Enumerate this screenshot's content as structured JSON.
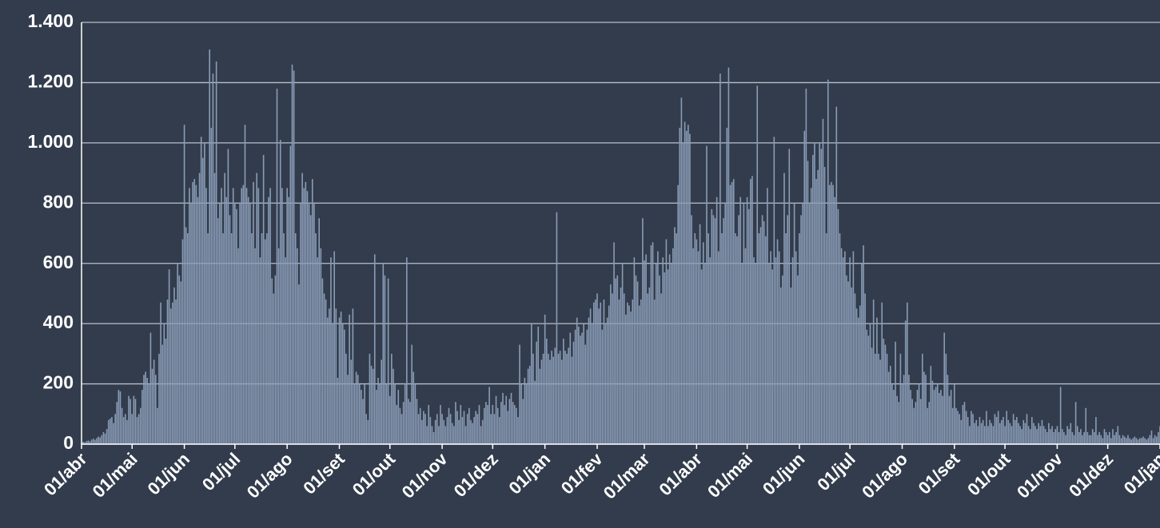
{
  "chart_data": {
    "type": "bar",
    "color": "#8a9cb6",
    "ylim": [
      0,
      1400
    ],
    "yticks": [
      0,
      200,
      400,
      600,
      800,
      {
        "value": 1000,
        "label": "1.000"
      },
      {
        "value": 1200,
        "label": "1.200"
      },
      {
        "value": 1400,
        "label": "1.400"
      }
    ],
    "grid": true,
    "categories": [
      "01/abr",
      null,
      null,
      null,
      null,
      null,
      null,
      null,
      null,
      null,
      null,
      null,
      null,
      null,
      null,
      null,
      null,
      null,
      null,
      null,
      null,
      null,
      null,
      null,
      null,
      null,
      null,
      null,
      null,
      null,
      "01/mai",
      null,
      null,
      null,
      null,
      null,
      null,
      null,
      null,
      null,
      null,
      null,
      null,
      null,
      null,
      null,
      null,
      null,
      null,
      null,
      null,
      null,
      null,
      null,
      null,
      null,
      null,
      null,
      null,
      null,
      null,
      "01/jun",
      null,
      null,
      null,
      null,
      null,
      null,
      null,
      null,
      null,
      null,
      null,
      null,
      null,
      null,
      null,
      null,
      null,
      null,
      null,
      null,
      null,
      null,
      null,
      null,
      null,
      null,
      null,
      null,
      null,
      "01/jul",
      null,
      null,
      null,
      null,
      null,
      null,
      null,
      null,
      null,
      null,
      null,
      null,
      null,
      null,
      null,
      null,
      null,
      null,
      null,
      null,
      null,
      null,
      null,
      null,
      null,
      null,
      null,
      null,
      null,
      null,
      "01/ago",
      null,
      null,
      null,
      null,
      null,
      null,
      null,
      null,
      null,
      null,
      null,
      null,
      null,
      null,
      null,
      null,
      null,
      null,
      null,
      null,
      null,
      null,
      null,
      null,
      null,
      null,
      null,
      null,
      null,
      null,
      "01/set",
      null,
      null,
      null,
      null,
      null,
      null,
      null,
      null,
      null,
      null,
      null,
      null,
      null,
      null,
      null,
      null,
      null,
      null,
      null,
      null,
      null,
      null,
      null,
      null,
      null,
      null,
      null,
      null,
      null,
      "01/out",
      null,
      null,
      null,
      null,
      null,
      null,
      null,
      null,
      null,
      null,
      null,
      null,
      null,
      null,
      null,
      null,
      null,
      null,
      null,
      null,
      null,
      null,
      null,
      null,
      null,
      null,
      null,
      null,
      null,
      null,
      "01/nov",
      null,
      null,
      null,
      null,
      null,
      null,
      null,
      null,
      null,
      null,
      null,
      null,
      null,
      null,
      null,
      null,
      null,
      null,
      null,
      null,
      null,
      null,
      null,
      null,
      null,
      null,
      null,
      null,
      null,
      "01/dez",
      null,
      null,
      null,
      null,
      null,
      null,
      null,
      null,
      null,
      null,
      null,
      null,
      null,
      null,
      null,
      null,
      null,
      null,
      null,
      null,
      null,
      null,
      null,
      null,
      null,
      null,
      null,
      null,
      null,
      null,
      "01/jan",
      null,
      null,
      null,
      null,
      null,
      null,
      null,
      null,
      null,
      null,
      null,
      null,
      null,
      null,
      null,
      null,
      null,
      null,
      null,
      null,
      null,
      null,
      null,
      null,
      null,
      null,
      null,
      null,
      null,
      null,
      "01/fev",
      null,
      null,
      null,
      null,
      null,
      null,
      null,
      null,
      null,
      null,
      null,
      null,
      null,
      null,
      null,
      null,
      null,
      null,
      null,
      null,
      null,
      null,
      null,
      null,
      null,
      null,
      null,
      "01/mar",
      null,
      null,
      null,
      null,
      null,
      null,
      null,
      null,
      null,
      null,
      null,
      null,
      null,
      null,
      null,
      null,
      null,
      null,
      null,
      null,
      null,
      null,
      null,
      null,
      null,
      null,
      null,
      null,
      null,
      null,
      "01/abr",
      null,
      null,
      null,
      null,
      null,
      null,
      null,
      null,
      null,
      null,
      null,
      null,
      null,
      null,
      null,
      null,
      null,
      null,
      null,
      null,
      null,
      null,
      null,
      null,
      null,
      null,
      null,
      null,
      null,
      "01/mai",
      null,
      null,
      null,
      null,
      null,
      null,
      null,
      null,
      null,
      null,
      null,
      null,
      null,
      null,
      null,
      null,
      null,
      null,
      null,
      null,
      null,
      null,
      null,
      null,
      null,
      null,
      null,
      null,
      null,
      null,
      "01/jun",
      null,
      null,
      null,
      null,
      null,
      null,
      null,
      null,
      null,
      null,
      null,
      null,
      null,
      null,
      null,
      null,
      null,
      null,
      null,
      null,
      null,
      null,
      null,
      null,
      null,
      null,
      null,
      null,
      null,
      "01/jul",
      null,
      null,
      null,
      null,
      null,
      null,
      null,
      null,
      null,
      null,
      null,
      null,
      null,
      null,
      null,
      null,
      null,
      null,
      null,
      null,
      null,
      null,
      null,
      null,
      null,
      null,
      null,
      null,
      null,
      null,
      "01/ago",
      null,
      null,
      null,
      null,
      null,
      null,
      null,
      null,
      null,
      null,
      null,
      null,
      null,
      null,
      null,
      null,
      null,
      null,
      null,
      null,
      null,
      null,
      null,
      null,
      null,
      null,
      null,
      null,
      null,
      null,
      "01/set",
      null,
      null,
      null,
      null,
      null,
      null,
      null,
      null,
      null,
      null,
      null,
      null,
      null,
      null,
      null,
      null,
      null,
      null,
      null,
      null,
      null,
      null,
      null,
      null,
      null,
      null,
      null,
      null,
      null,
      "01/out",
      null,
      null,
      null,
      null,
      null,
      null,
      null,
      null,
      null,
      null,
      null,
      null,
      null,
      null,
      null,
      null,
      null,
      null,
      null,
      null,
      null,
      null,
      null,
      null,
      null,
      null,
      null,
      null,
      null,
      null,
      "01/nov",
      null,
      null,
      null,
      null,
      null,
      null,
      null,
      null,
      null,
      null,
      null,
      null,
      null,
      null,
      null,
      null,
      null,
      null,
      null,
      null,
      null,
      null,
      null,
      null,
      null,
      null,
      null,
      null,
      null,
      "01/dez",
      null,
      null,
      null,
      null,
      null,
      null,
      null,
      null,
      null,
      null,
      null,
      null,
      null,
      null,
      null,
      null,
      null,
      null,
      null,
      null,
      null,
      null,
      null,
      null,
      null,
      null,
      null,
      null,
      null,
      null,
      "01/jan"
    ],
    "values": [
      5,
      8,
      6,
      10,
      12,
      9,
      15,
      18,
      14,
      20,
      25,
      22,
      30,
      40,
      35,
      50,
      80,
      85,
      90,
      70,
      100,
      140,
      180,
      175,
      120,
      90,
      100,
      80,
      160,
      150,
      100,
      160,
      150,
      90,
      100,
      120,
      180,
      230,
      240,
      220,
      200,
      370,
      250,
      280,
      230,
      120,
      300,
      470,
      330,
      400,
      350,
      480,
      580,
      450,
      470,
      520,
      480,
      600,
      560,
      540,
      680,
      1060,
      720,
      700,
      850,
      800,
      870,
      880,
      860,
      820,
      900,
      1020,
      950,
      1000,
      850,
      700,
      1310,
      1050,
      1230,
      900,
      1270,
      750,
      800,
      850,
      700,
      900,
      820,
      980,
      760,
      700,
      850,
      800,
      780,
      650,
      800,
      850,
      860,
      1060,
      850,
      820,
      800,
      700,
      870,
      650,
      900,
      850,
      620,
      700,
      960,
      680,
      700,
      820,
      850,
      550,
      500,
      560,
      1180,
      650,
      1010,
      850,
      700,
      620,
      850,
      820,
      990,
      1260,
      1240,
      700,
      650,
      530,
      800,
      900,
      850,
      870,
      840,
      800,
      760,
      880,
      800,
      700,
      620,
      750,
      650,
      550,
      500,
      480,
      420,
      450,
      620,
      400,
      640,
      450,
      220,
      420,
      440,
      400,
      380,
      300,
      230,
      430,
      280,
      450,
      200,
      240,
      230,
      200,
      180,
      150,
      200,
      100,
      80,
      300,
      260,
      250,
      630,
      180,
      220,
      200,
      280,
      600,
      560,
      200,
      550,
      160,
      300,
      250,
      200,
      130,
      180,
      120,
      100,
      140,
      200,
      620,
      150,
      140,
      330,
      240,
      200,
      150,
      100,
      120,
      80,
      110,
      100,
      60,
      130,
      90,
      60,
      40,
      80,
      100,
      60,
      130,
      100,
      80,
      60,
      90,
      120,
      100,
      70,
      60,
      140,
      110,
      80,
      130,
      90,
      110,
      60,
      100,
      120,
      80,
      70,
      90,
      110,
      100,
      130,
      60,
      80,
      120,
      140,
      130,
      190,
      100,
      130,
      100,
      160,
      120,
      90,
      140,
      170,
      130,
      160,
      110,
      150,
      170,
      140,
      130,
      120,
      90,
      330,
      200,
      150,
      220,
      200,
      250,
      260,
      400,
      300,
      210,
      340,
      390,
      250,
      280,
      300,
      430,
      350,
      300,
      280,
      310,
      290,
      320,
      770,
      300,
      310,
      280,
      350,
      310,
      300,
      320,
      370,
      290,
      340,
      380,
      420,
      390,
      360,
      370,
      400,
      330,
      380,
      420,
      450,
      400,
      470,
      480,
      500,
      450,
      470,
      380,
      480,
      400,
      420,
      460,
      530,
      500,
      670,
      550,
      560,
      480,
      520,
      600,
      500,
      430,
      470,
      460,
      440,
      480,
      620,
      560,
      540,
      460,
      480,
      750,
      610,
      630,
      500,
      520,
      660,
      670,
      480,
      600,
      640,
      560,
      500,
      620,
      570,
      680,
      580,
      630,
      600,
      650,
      720,
      700,
      860,
      1050,
      1150,
      1000,
      1070,
      1040,
      1060,
      1030,
      760,
      650,
      700,
      680,
      640,
      730,
      580,
      670,
      600,
      990,
      700,
      620,
      780,
      760,
      750,
      820,
      640,
      1230,
      700,
      750,
      800,
      1050,
      1250,
      860,
      870,
      880,
      700,
      690,
      760,
      820,
      600,
      800,
      650,
      820,
      780,
      880,
      890,
      620,
      600,
      1190,
      700,
      720,
      760,
      740,
      690,
      850,
      600,
      640,
      580,
      1020,
      620,
      680,
      640,
      520,
      560,
      900,
      700,
      760,
      980,
      520,
      620,
      800,
      640,
      560,
      700,
      760,
      800,
      1040,
      1180,
      940,
      800,
      850,
      960,
      1000,
      880,
      910,
      1000,
      980,
      1080,
      920,
      700,
      1210,
      860,
      870,
      860,
      820,
      1120,
      780,
      700,
      650,
      620,
      640,
      560,
      540,
      620,
      520,
      640,
      500,
      450,
      420,
      460,
      600,
      660,
      500,
      380,
      360,
      400,
      320,
      480,
      300,
      420,
      300,
      280,
      470,
      350,
      330,
      300,
      240,
      260,
      200,
      180,
      340,
      160,
      140,
      300,
      200,
      230,
      410,
      470,
      230,
      180,
      150,
      120,
      140,
      180,
      200,
      150,
      300,
      240,
      230,
      120,
      140,
      260,
      210,
      180,
      190,
      200,
      170,
      180,
      160,
      370,
      300,
      230,
      160,
      180,
      120,
      200,
      120,
      110,
      100,
      80,
      130,
      140,
      110,
      90,
      60,
      110,
      100,
      70,
      80,
      60,
      90,
      70,
      80,
      60,
      110,
      60,
      80,
      70,
      60,
      100,
      90,
      110,
      70,
      80,
      90,
      60,
      110,
      80,
      70,
      60,
      100,
      80,
      90,
      70,
      60,
      50,
      80,
      70,
      100,
      60,
      50,
      90,
      70,
      60,
      50,
      70,
      60,
      80,
      60,
      50,
      40,
      70,
      50,
      60,
      40,
      50,
      60,
      40,
      190,
      50,
      40,
      30,
      60,
      50,
      70,
      40,
      30,
      140,
      60,
      40,
      50,
      30,
      40,
      120,
      40,
      30,
      30,
      50,
      40,
      90,
      30,
      40,
      30,
      20,
      50,
      40,
      30,
      40,
      20,
      50,
      30,
      40,
      60,
      30,
      20,
      30,
      25,
      20,
      30,
      20,
      15,
      20,
      25,
      20,
      15,
      20,
      20,
      25,
      20,
      15,
      20,
      30,
      45,
      20,
      30,
      25,
      40,
      60
    ]
  }
}
